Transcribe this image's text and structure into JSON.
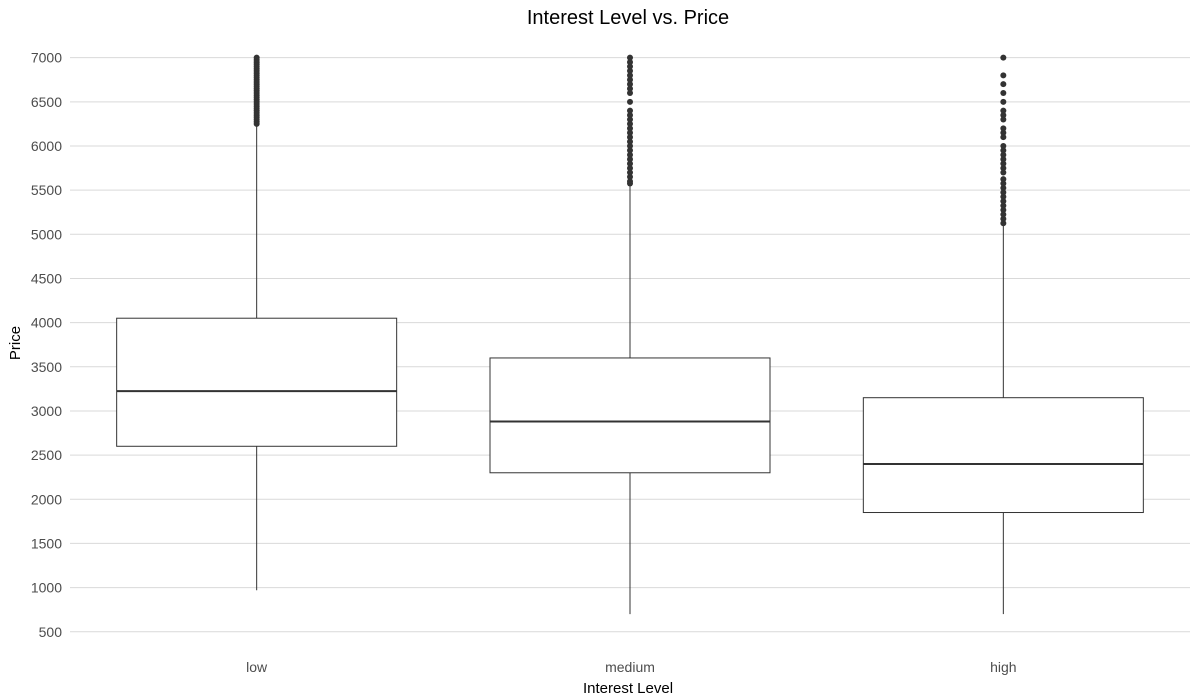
{
  "chart_data": {
    "type": "box",
    "title": "Interest Level vs. Price",
    "xlabel": "Interest Level",
    "ylabel": "Price",
    "ylim": [
      350,
      7200
    ],
    "yticks": [
      "500",
      "1000",
      "1500",
      "2000",
      "2500",
      "3000",
      "3500",
      "4000",
      "4500",
      "5000",
      "5500",
      "6000",
      "6500",
      "7000"
    ],
    "grid": "horizontal",
    "legend": "none",
    "categories": [
      "low",
      "medium",
      "high"
    ],
    "boxes": [
      {
        "category": "low",
        "whisker_low": 970,
        "q1": 2600,
        "median": 3225,
        "q3": 4050,
        "whisker_high": 6240,
        "outliers": [
          6250,
          6275,
          6300,
          6325,
          6350,
          6375,
          6400,
          6425,
          6450,
          6475,
          6500,
          6525,
          6550,
          6575,
          6600,
          6625,
          6650,
          6675,
          6700,
          6725,
          6750,
          6775,
          6800,
          6825,
          6850,
          6875,
          6900,
          6925,
          6950,
          6975,
          7000
        ]
      },
      {
        "category": "medium",
        "whisker_low": 700,
        "q1": 2300,
        "median": 2880,
        "q3": 3600,
        "whisker_high": 5560,
        "outliers": [
          5575,
          5600,
          5650,
          5700,
          5750,
          5800,
          5850,
          5900,
          5950,
          6000,
          6050,
          6100,
          6150,
          6200,
          6250,
          6300,
          6350,
          6400,
          6500,
          6600,
          6650,
          6700,
          6750,
          6800,
          6850,
          6900,
          6950,
          7000
        ]
      },
      {
        "category": "high",
        "whisker_low": 700,
        "q1": 1850,
        "median": 2400,
        "q3": 3150,
        "whisker_high": 5100,
        "outliers": [
          5125,
          5175,
          5225,
          5275,
          5325,
          5375,
          5425,
          5475,
          5525,
          5575,
          5625,
          5700,
          5750,
          5800,
          5850,
          5900,
          5950,
          6000,
          6100,
          6150,
          6200,
          6300,
          6350,
          6400,
          6500,
          6600,
          6700,
          6800,
          7000
        ]
      }
    ]
  }
}
